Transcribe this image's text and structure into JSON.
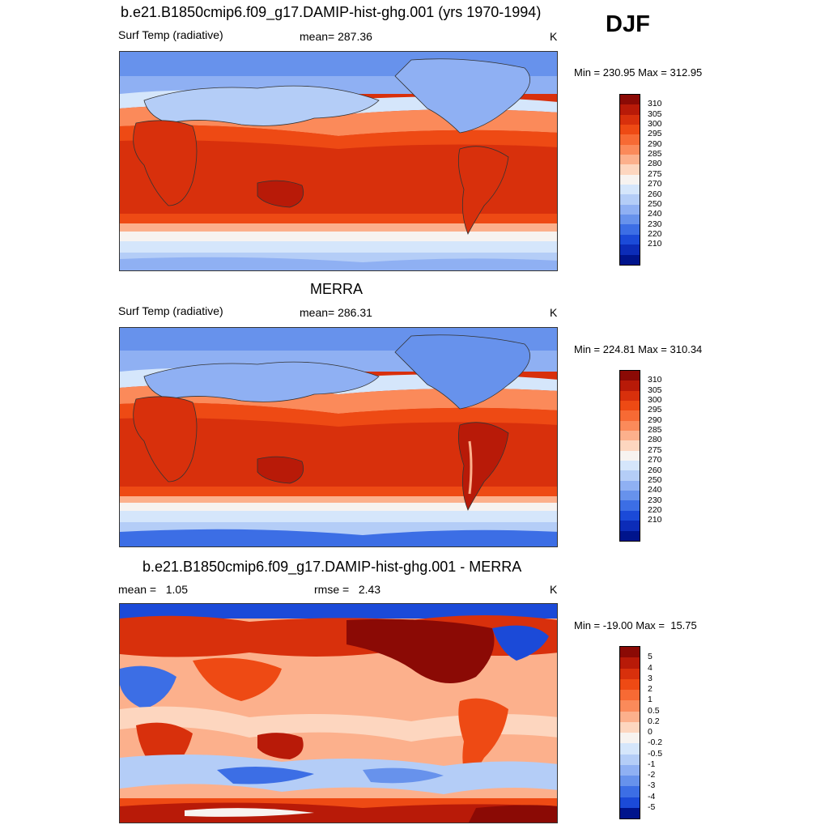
{
  "header": {
    "season": "DJF"
  },
  "panels": [
    {
      "title": "b.e21.B1850cmip6.f09_g17.DAMIP-hist-ghg.001 (yrs 1970-1994)",
      "left_label": "Surf Temp (radiative)",
      "center_label": "mean= 287.36",
      "units": "K",
      "minmax": "Min = 230.95 Max = 312.95",
      "colorbar": {
        "levels": [
          "310",
          "305",
          "300",
          "295",
          "290",
          "285",
          "280",
          "275",
          "270",
          "260",
          "250",
          "240",
          "230",
          "220",
          "210"
        ],
        "colors": [
          "#8b0a05",
          "#b81a08",
          "#d8300c",
          "#ee4a14",
          "#f76a34",
          "#fb8a5a",
          "#fcb08c",
          "#fdd6bf",
          "#f7f3f0",
          "#d5e6fb",
          "#b4cdf7",
          "#8fb0f3",
          "#6792ec",
          "#3c6ee5",
          "#1b4ad8",
          "#0c2cb8",
          "#00148c"
        ]
      },
      "map": "model"
    },
    {
      "title": "MERRA",
      "left_label": "Surf Temp (radiative)",
      "center_label": "mean= 286.31",
      "units": "K",
      "minmax": "Min = 224.81 Max = 310.34",
      "colorbar": {
        "levels": [
          "310",
          "305",
          "300",
          "295",
          "290",
          "285",
          "280",
          "275",
          "270",
          "260",
          "250",
          "240",
          "230",
          "220",
          "210"
        ],
        "colors": [
          "#8b0a05",
          "#b81a08",
          "#d8300c",
          "#ee4a14",
          "#f76a34",
          "#fb8a5a",
          "#fcb08c",
          "#fdd6bf",
          "#f7f3f0",
          "#d5e6fb",
          "#b4cdf7",
          "#8fb0f3",
          "#6792ec",
          "#3c6ee5",
          "#1b4ad8",
          "#0c2cb8",
          "#00148c"
        ]
      },
      "map": "obs"
    },
    {
      "title": "b.e21.B1850cmip6.f09_g17.DAMIP-hist-ghg.001 - MERRA",
      "left_label": "mean =   1.05",
      "center_label": "rmse =   2.43",
      "units": "K",
      "minmax": "Min = -19.00 Max =  15.75",
      "colorbar": {
        "levels": [
          "5",
          "4",
          "3",
          "2",
          "1",
          "0.5",
          "0.2",
          "0",
          "-0.2",
          "-0.5",
          "-1",
          "-2",
          "-3",
          "-4",
          "-5"
        ],
        "colors": [
          "#8b0a05",
          "#b81a08",
          "#d8300c",
          "#ee4a14",
          "#f76a34",
          "#fb8a5a",
          "#fcb08c",
          "#fdd6bf",
          "#f7f3f0",
          "#d5e6fb",
          "#b4cdf7",
          "#8fb0f3",
          "#6792ec",
          "#3c6ee5",
          "#1b4ad8",
          "#00148c"
        ]
      },
      "map": "diff"
    }
  ]
}
